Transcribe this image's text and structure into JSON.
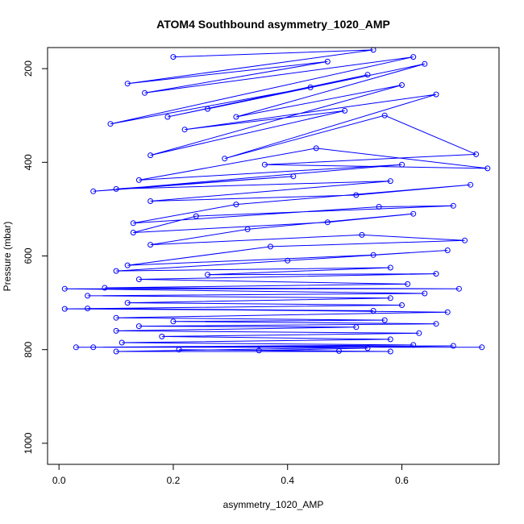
{
  "chart_data": {
    "type": "line",
    "title": "ATOM4 Southbound asymmetry_1020_AMP",
    "xlabel": "asymmetry_1020_AMP",
    "ylabel": "Pressure (mbar)",
    "xlim": [
      -0.02,
      0.77
    ],
    "ylim": [
      1045,
      155
    ],
    "y_reversed": true,
    "x_ticks": [
      0.0,
      0.2,
      0.4,
      0.6
    ],
    "x_tick_labels": [
      "0.0",
      "0.2",
      "0.4",
      "0.6"
    ],
    "y_ticks": [
      200,
      400,
      600,
      800,
      1000
    ],
    "y_tick_labels": [
      "200",
      "400",
      "600",
      "800",
      "1000"
    ],
    "grid": false,
    "legend": "none",
    "marker": "open-circle",
    "color": "#0000ff",
    "series": [
      {
        "values_xy": [
          [
            0.2,
            175
          ],
          [
            0.55,
            160
          ],
          [
            0.12,
            232
          ],
          [
            0.47,
            185
          ],
          [
            0.15,
            252
          ],
          [
            0.62,
            175
          ],
          [
            0.09,
            318
          ],
          [
            0.44,
            240
          ],
          [
            0.19,
            303
          ],
          [
            0.54,
            213
          ],
          [
            0.26,
            286
          ],
          [
            0.64,
            190
          ],
          [
            0.31,
            303
          ],
          [
            0.6,
            235
          ],
          [
            0.16,
            385
          ],
          [
            0.5,
            290
          ],
          [
            0.22,
            330
          ],
          [
            0.66,
            255
          ],
          [
            0.29,
            392
          ],
          [
            0.57,
            300
          ],
          [
            0.73,
            383
          ],
          [
            0.36,
            405
          ],
          [
            0.75,
            413
          ],
          [
            0.45,
            370
          ],
          [
            0.14,
            438
          ],
          [
            0.6,
            405
          ],
          [
            0.06,
            462
          ],
          [
            0.41,
            430
          ],
          [
            0.1,
            457
          ],
          [
            0.58,
            440
          ],
          [
            0.16,
            483
          ],
          [
            0.52,
            470
          ],
          [
            0.72,
            448
          ],
          [
            0.31,
            490
          ],
          [
            0.13,
            530
          ],
          [
            0.56,
            495
          ],
          [
            0.69,
            493
          ],
          [
            0.24,
            515
          ],
          [
            0.13,
            550
          ],
          [
            0.47,
            528
          ],
          [
            0.62,
            510
          ],
          [
            0.33,
            543
          ],
          [
            0.16,
            576
          ],
          [
            0.53,
            555
          ],
          [
            0.71,
            567
          ],
          [
            0.37,
            580
          ],
          [
            0.12,
            620
          ],
          [
            0.55,
            598
          ],
          [
            0.68,
            588
          ],
          [
            0.4,
            610
          ],
          [
            0.1,
            632
          ],
          [
            0.58,
            625
          ],
          [
            0.26,
            640
          ],
          [
            0.66,
            638
          ],
          [
            0.14,
            650
          ],
          [
            0.61,
            660
          ],
          [
            0.08,
            668
          ],
          [
            0.7,
            670
          ],
          [
            0.01,
            670
          ],
          [
            0.64,
            680
          ],
          [
            0.05,
            685
          ],
          [
            0.58,
            690
          ],
          [
            0.12,
            700
          ],
          [
            0.6,
            705
          ],
          [
            0.01,
            713
          ],
          [
            0.55,
            717
          ],
          [
            0.05,
            712
          ],
          [
            0.68,
            720
          ],
          [
            0.1,
            732
          ],
          [
            0.57,
            737
          ],
          [
            0.2,
            740
          ],
          [
            0.66,
            745
          ],
          [
            0.14,
            750
          ],
          [
            0.52,
            752
          ],
          [
            0.1,
            760
          ],
          [
            0.63,
            765
          ],
          [
            0.18,
            772
          ],
          [
            0.58,
            778
          ],
          [
            0.11,
            785
          ],
          [
            0.62,
            790
          ],
          [
            0.03,
            795
          ],
          [
            0.74,
            795
          ],
          [
            0.06,
            795
          ],
          [
            0.69,
            792
          ],
          [
            0.1,
            804
          ],
          [
            0.58,
            804
          ],
          [
            0.21,
            800
          ],
          [
            0.49,
            803
          ],
          [
            0.35,
            802
          ],
          [
            0.54,
            797
          ]
        ]
      }
    ]
  }
}
